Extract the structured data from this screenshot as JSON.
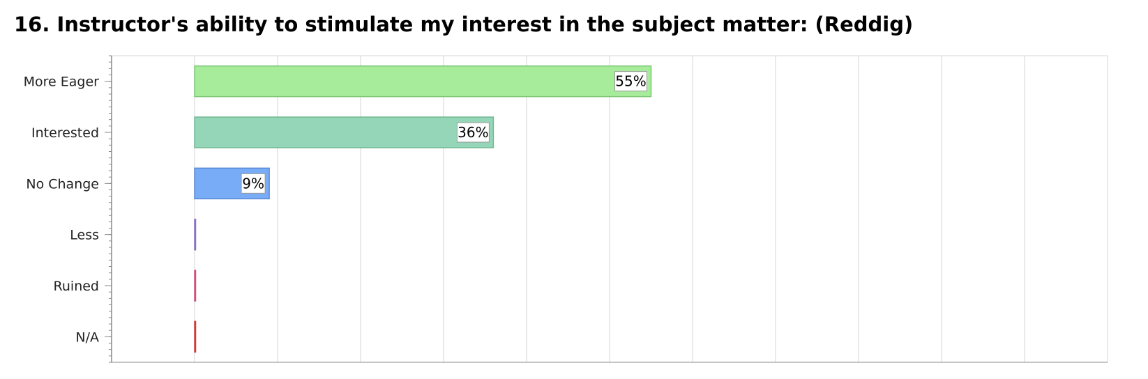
{
  "chart_data": {
    "type": "bar",
    "orientation": "horizontal",
    "title": "16. Instructor's ability to stimulate my interest in the subject matter: (Reddig)",
    "categories": [
      "More Eager",
      "Interested",
      "No Change",
      "Less",
      "Ruined",
      "N/A"
    ],
    "values": [
      55,
      36,
      9,
      0,
      0,
      0
    ],
    "data_labels": [
      "55%",
      "36%",
      "9%",
      "",
      "",
      ""
    ],
    "xlim": [
      -10,
      110
    ],
    "grid": true,
    "legend": "none",
    "colors": {
      "fills": [
        "#a6ec9a",
        "#96d6b8",
        "#78acf7",
        "#a894dc",
        "#e87aa0",
        "#e35858"
      ],
      "strokes": [
        "#7dc777",
        "#6fb892",
        "#5a88d4",
        "#8a70c8",
        "#d0507e",
        "#d03c3c"
      ],
      "grid": "#d4d4d4",
      "axis": "#888888"
    }
  }
}
